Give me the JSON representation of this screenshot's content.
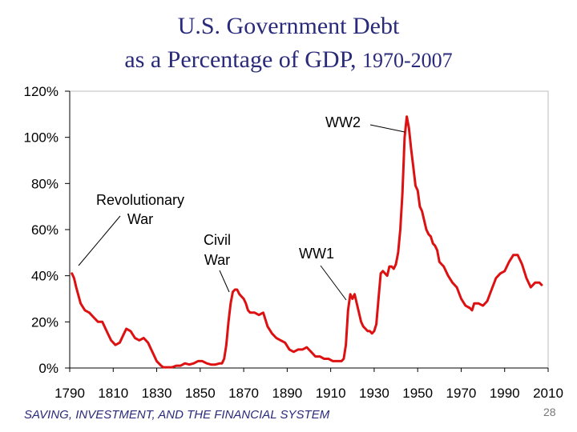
{
  "slide": {
    "title_line1": "U.S. Government Debt",
    "title_line2_main": "as a Percentage of GDP,",
    "title_line2_years": "1970-2007",
    "footer": "SAVING, INVESTMENT, AND THE FINANCIAL SYSTEM",
    "page_number": "28"
  },
  "chart_data": {
    "type": "line",
    "title": "U.S. Government Debt as a Percentage of GDP, 1970-2007",
    "xlabel": "",
    "ylabel": "",
    "xlim": [
      1790,
      2010
    ],
    "ylim": [
      0,
      120
    ],
    "x_ticks": [
      1790,
      1810,
      1830,
      1850,
      1870,
      1890,
      1910,
      1930,
      1950,
      1970,
      1990,
      2010
    ],
    "x_tick_labels": [
      "1790",
      "1810",
      "1830",
      "1850",
      "1870",
      "1890",
      "1910",
      "1930",
      "1950",
      "1970",
      "1990",
      "2010"
    ],
    "y_ticks": [
      0,
      20,
      40,
      60,
      80,
      100,
      120
    ],
    "y_tick_labels": [
      "0%",
      "20%",
      "40%",
      "60%",
      "80%",
      "100%",
      "120%"
    ],
    "grid": false,
    "line_color": "#dd1111",
    "series": [
      {
        "x": [
          1791,
          1792,
          1793,
          1795,
          1797,
          1799,
          1801,
          1803,
          1805,
          1807,
          1809,
          1811,
          1813,
          1815,
          1816,
          1818,
          1820,
          1822,
          1824,
          1826,
          1828,
          1830,
          1832,
          1833,
          1835,
          1837,
          1839,
          1841,
          1843,
          1845,
          1847,
          1849,
          1851,
          1853,
          1855,
          1857,
          1859,
          1860,
          1861,
          1862,
          1863,
          1864,
          1865,
          1866,
          1867,
          1868,
          1869,
          1870,
          1871,
          1872,
          1873,
          1875,
          1877,
          1879,
          1881,
          1883,
          1885,
          1887,
          1889,
          1891,
          1893,
          1895,
          1897,
          1899,
          1901,
          1903,
          1905,
          1907,
          1909,
          1911,
          1913,
          1915,
          1916,
          1917,
          1918,
          1919,
          1920,
          1921,
          1922,
          1923,
          1924,
          1925,
          1926,
          1927,
          1928,
          1929,
          1930,
          1931,
          1932,
          1933,
          1934,
          1935,
          1936,
          1937,
          1938,
          1939,
          1940,
          1941,
          1942,
          1943,
          1944,
          1945,
          1946,
          1947,
          1948,
          1949,
          1950,
          1951,
          1952,
          1953,
          1954,
          1955,
          1956,
          1957,
          1958,
          1959,
          1960,
          1962,
          1964,
          1966,
          1968,
          1970,
          1972,
          1974,
          1975,
          1976,
          1978,
          1980,
          1982,
          1984,
          1986,
          1988,
          1990,
          1992,
          1994,
          1996,
          1998,
          2000,
          2002,
          2004,
          2006,
          2007
        ],
        "values": [
          41,
          39,
          35,
          28,
          25,
          24,
          22,
          20,
          20,
          16,
          12,
          10,
          11,
          15,
          17,
          16,
          13,
          12,
          13,
          11,
          7,
          3,
          1,
          0.3,
          0.3,
          0.3,
          1,
          1,
          2,
          1.5,
          2,
          3,
          3,
          2,
          1.5,
          1.5,
          2,
          2,
          4,
          10,
          20,
          28,
          33,
          34,
          34,
          32,
          31,
          30,
          28,
          25,
          24,
          24,
          23,
          24,
          18,
          15,
          13,
          12,
          11,
          8,
          7,
          8,
          8,
          9,
          7,
          5,
          5,
          4,
          4,
          3,
          3,
          3,
          4,
          10,
          25,
          32,
          30,
          32,
          28,
          24,
          20,
          18,
          17,
          16,
          16,
          15,
          16,
          19,
          30,
          41,
          42,
          41,
          40,
          44,
          44,
          43,
          45,
          50,
          60,
          76,
          100,
          109,
          104,
          95,
          87,
          79,
          77,
          70,
          68,
          64,
          60,
          58,
          57,
          54,
          53,
          51,
          46,
          44,
          40,
          37,
          35,
          30,
          27,
          26,
          25,
          28,
          28,
          27,
          29,
          34,
          39,
          41,
          42,
          46,
          49,
          49,
          45,
          39,
          35,
          37,
          37,
          36
        ]
      }
    ],
    "annotations": [
      {
        "label": "WW2",
        "x": 1945,
        "y": 109
      },
      {
        "label": "Revolutionary War",
        "x": 1791,
        "y": 41
      },
      {
        "label": "Civil War",
        "x": 1866,
        "y": 34
      },
      {
        "label": "WW1",
        "x": 1919,
        "y": 30
      }
    ]
  }
}
